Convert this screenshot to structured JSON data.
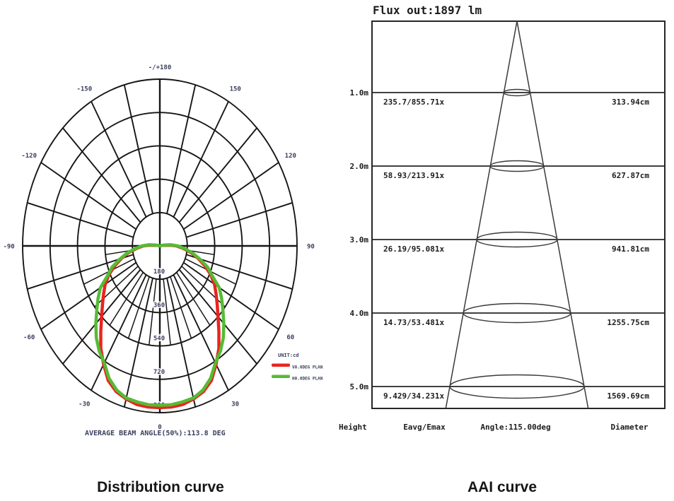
{
  "captions": {
    "left": "Distribution curve",
    "right": "AAI curve"
  },
  "distribution": {
    "unit_label": "UNIT:cd",
    "footer": "AVERAGE BEAM ANGLE(50%):113.8 DEG",
    "ring_values": [
      180,
      360,
      540,
      720,
      900
    ],
    "angle_labels": [
      {
        "deg": 180,
        "text": "-/+180"
      },
      {
        "deg": 150,
        "text": "150"
      },
      {
        "deg": -150,
        "text": "-150"
      },
      {
        "deg": 120,
        "text": "120"
      },
      {
        "deg": -120,
        "text": "-120"
      },
      {
        "deg": 90,
        "text": "90"
      },
      {
        "deg": -90,
        "text": "-90"
      },
      {
        "deg": 60,
        "text": "60"
      },
      {
        "deg": -60,
        "text": "-60"
      },
      {
        "deg": 30,
        "text": "30"
      },
      {
        "deg": -30,
        "text": "-30"
      },
      {
        "deg": 0,
        "text": "0"
      }
    ],
    "legend": [
      {
        "name": "V0.0DEG PLAN",
        "color": "#e8251f"
      },
      {
        "name": "H0.0DEG PLAN",
        "color": "#56bb34"
      }
    ]
  },
  "aai": {
    "flux_label": "Flux out:1897 lm",
    "columns": [
      "Height",
      "Eavg/Emax",
      "Angle:115.00deg",
      "Diameter"
    ],
    "rows": [
      {
        "height": "1.0m",
        "eavg_emax": "235.7/855.71x",
        "diameter": "313.94cm"
      },
      {
        "height": "2.0m",
        "eavg_emax": "58.93/213.91x",
        "diameter": "627.87cm"
      },
      {
        "height": "3.0m",
        "eavg_emax": "26.19/95.081x",
        "diameter": "941.81cm"
      },
      {
        "height": "4.0m",
        "eavg_emax": "14.73/53.481x",
        "diameter": "1255.75cm"
      },
      {
        "height": "5.0m",
        "eavg_emax": "9.429/34.231x",
        "diameter": "1569.69cm"
      }
    ]
  },
  "chart_data": [
    {
      "type": "line",
      "subtype": "polar-photometric",
      "title": "Distribution curve",
      "unit": "cd",
      "ring_values": [
        180,
        360,
        540,
        720,
        900
      ],
      "angle_range_deg": [
        -180,
        180
      ],
      "annotation": "AVERAGE BEAM ANGLE(50%):113.8 DEG",
      "legend_position": "right-bottom",
      "series": [
        {
          "name": "V0.0DEG PLAN",
          "color": "#e8251f",
          "points": [
            [
              -102,
              0
            ],
            [
              -100,
              18
            ],
            [
              -95,
              63
            ],
            [
              -90,
              108
            ],
            [
              -85,
              153
            ],
            [
              -80,
              207
            ],
            [
              -75,
              261
            ],
            [
              -70,
              315
            ],
            [
              -65,
              369
            ],
            [
              -60,
              414
            ],
            [
              -55,
              450
            ],
            [
              -50,
              491
            ],
            [
              -45,
              540
            ],
            [
              -40,
              603
            ],
            [
              -35,
              675
            ],
            [
              -30,
              738
            ],
            [
              -25,
              801
            ],
            [
              -20,
              837
            ],
            [
              -15,
              855
            ],
            [
              -10,
              869
            ],
            [
              -5,
              873
            ],
            [
              0,
              873
            ],
            [
              5,
              873
            ],
            [
              10,
              869
            ],
            [
              15,
              855
            ],
            [
              20,
              837
            ],
            [
              25,
              801
            ],
            [
              30,
              738
            ],
            [
              35,
              675
            ],
            [
              40,
              603
            ],
            [
              45,
              540
            ],
            [
              50,
              491
            ],
            [
              55,
              450
            ],
            [
              60,
              414
            ],
            [
              65,
              369
            ],
            [
              70,
              315
            ],
            [
              75,
              261
            ],
            [
              80,
              207
            ],
            [
              85,
              153
            ],
            [
              90,
              108
            ],
            [
              95,
              63
            ],
            [
              100,
              18
            ],
            [
              102,
              0
            ]
          ]
        },
        {
          "name": "H0.0DEG PLAN",
          "color": "#56bb34",
          "points": [
            [
              -103,
              0
            ],
            [
              -100,
              27
            ],
            [
              -95,
              72
            ],
            [
              -90,
              117
            ],
            [
              -85,
              162
            ],
            [
              -80,
              216
            ],
            [
              -75,
              270
            ],
            [
              -70,
              333
            ],
            [
              -65,
              378
            ],
            [
              -60,
              450
            ],
            [
              -55,
              495
            ],
            [
              -50,
              540
            ],
            [
              -45,
              594
            ],
            [
              -40,
              648
            ],
            [
              -35,
              693
            ],
            [
              -30,
              729
            ],
            [
              -25,
              788
            ],
            [
              -20,
              828
            ],
            [
              -15,
              850
            ],
            [
              -10,
              855
            ],
            [
              -5,
              860
            ],
            [
              0,
              860
            ],
            [
              5,
              860
            ],
            [
              10,
              855
            ],
            [
              15,
              850
            ],
            [
              20,
              828
            ],
            [
              25,
              788
            ],
            [
              30,
              729
            ],
            [
              35,
              693
            ],
            [
              40,
              648
            ],
            [
              45,
              594
            ],
            [
              50,
              540
            ],
            [
              55,
              495
            ],
            [
              60,
              450
            ],
            [
              65,
              378
            ],
            [
              70,
              333
            ],
            [
              75,
              270
            ],
            [
              80,
              216
            ],
            [
              85,
              162
            ],
            [
              90,
              117
            ],
            [
              95,
              72
            ],
            [
              100,
              27
            ],
            [
              103,
              0
            ]
          ]
        }
      ]
    },
    {
      "type": "table",
      "subtype": "aai-cone",
      "title": "AAI curve",
      "flux_lumens": 1897,
      "beam_angle_deg": 115.0,
      "columns": [
        "Height",
        "Eavg/Emax",
        "Diameter"
      ],
      "rows": [
        [
          "1.0m",
          "235.7/855.71x",
          "313.94cm"
        ],
        [
          "2.0m",
          "58.93/213.91x",
          "627.87cm"
        ],
        [
          "3.0m",
          "26.19/95.081x",
          "941.81cm"
        ],
        [
          "4.0m",
          "14.73/53.481x",
          "1255.75cm"
        ],
        [
          "5.0m",
          "9.429/34.231x",
          "1569.69cm"
        ]
      ]
    }
  ]
}
